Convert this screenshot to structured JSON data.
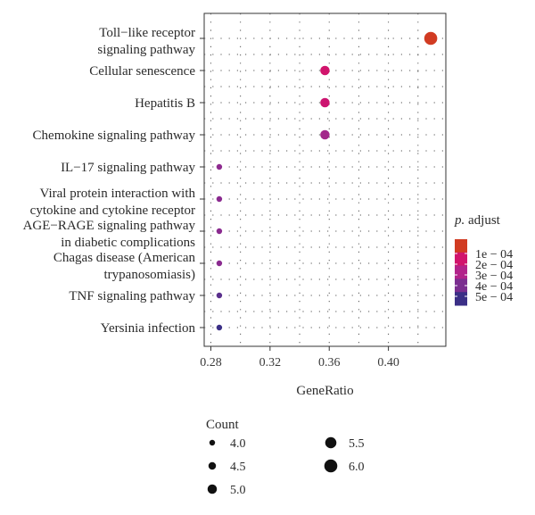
{
  "chart_data": {
    "type": "scatter",
    "categories": [
      [
        "Toll−like receptor",
        "signaling pathway"
      ],
      [
        "Cellular senescence"
      ],
      [
        "Hepatitis B"
      ],
      [
        "Chemokine signaling pathway"
      ],
      [
        "IL−17 signaling pathway"
      ],
      [
        "Viral protein interaction with",
        "cytokine and cytokine receptor"
      ],
      [
        "AGE−RAGE signaling pathway",
        "in diabetic complications"
      ],
      [
        "Chagas disease (American",
        "trypanosomiasis)"
      ],
      [
        "TNF signaling pathway"
      ],
      [
        "Yersinia infection"
      ]
    ],
    "points": [
      {
        "gene_ratio": 0.4286,
        "count": 6,
        "p_adjust": 5e-05,
        "color": "#d13b22"
      },
      {
        "gene_ratio": 0.3571,
        "count": 5,
        "p_adjust": 0.00017,
        "color": "#d1146c"
      },
      {
        "gene_ratio": 0.3571,
        "count": 5,
        "p_adjust": 0.00019,
        "color": "#cc1470"
      },
      {
        "gene_ratio": 0.3571,
        "count": 5,
        "p_adjust": 0.00031,
        "color": "#a3278a"
      },
      {
        "gene_ratio": 0.2857,
        "count": 4,
        "p_adjust": 0.00038,
        "color": "#8e2b8f"
      },
      {
        "gene_ratio": 0.2857,
        "count": 4,
        "p_adjust": 0.00039,
        "color": "#8a2a8f"
      },
      {
        "gene_ratio": 0.2857,
        "count": 4,
        "p_adjust": 0.00039,
        "color": "#8a2a8f"
      },
      {
        "gene_ratio": 0.2857,
        "count": 4,
        "p_adjust": 0.00039,
        "color": "#8a2a8f"
      },
      {
        "gene_ratio": 0.2857,
        "count": 4,
        "p_adjust": 0.00047,
        "color": "#5a2f8c"
      },
      {
        "gene_ratio": 0.2857,
        "count": 4,
        "p_adjust": 0.00055,
        "color": "#3b2f86"
      }
    ],
    "x_ticks": [
      "0.28",
      "0.32",
      "0.36",
      "0.40"
    ],
    "x_tick_values": [
      0.28,
      0.32,
      0.36,
      0.4
    ],
    "xlim": [
      0.2755,
      0.4388
    ],
    "xlabel": "GeneRatio",
    "grid": true,
    "size_legend": {
      "title": "Count",
      "labels": [
        "4.0",
        "4.5",
        "5.0",
        "5.5",
        "6.0"
      ],
      "values": [
        4.0,
        4.5,
        5.0,
        5.5,
        6.0
      ]
    },
    "color_legend": {
      "title_italic": "p.",
      "title_rest": " adjust",
      "labels": [
        "1e − 04",
        "2e − 04",
        "3e − 04",
        "4e − 04",
        "5e − 04"
      ],
      "colors": [
        "#d13b22",
        "#d1146c",
        "#b2238a",
        "#7b2e90",
        "#3b2f86"
      ],
      "placement": "right"
    }
  }
}
